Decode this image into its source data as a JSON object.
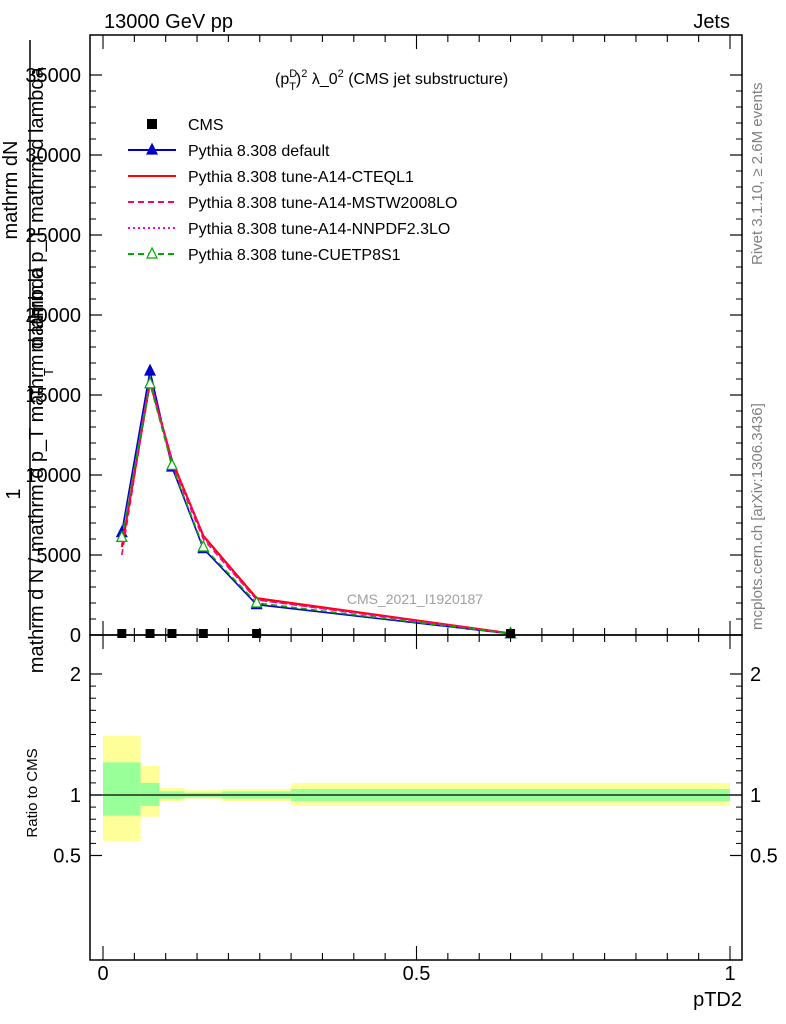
{
  "header": {
    "left": "13000 GeV pp",
    "right": "Jets"
  },
  "side": {
    "rivet": "Rivet 3.1.10, ≥ 2.6M events",
    "mcplots": "mcplots.cern.ch [arXiv:1306.3436]"
  },
  "watermark": "CMS_2021_I1920187",
  "chart_data": [
    {
      "type": "line",
      "title": "(p_T^D)^2 λ_0^2 (CMS jet substructure)",
      "title_parts": {
        "p": "(p",
        "sup_d": "D",
        "sub_t": "T",
        "close": ")",
        "sup_2": "2",
        "mid": " λ_0",
        "sup_2b": "2",
        "rest": " (CMS jet substructure)"
      },
      "ylabel_frac_num": "1",
      "ylabel_top": "mathrm dN",
      "ylabel_top2": "mathrm d p_T mathrm d lambda",
      "ylabel_bottom": "mathrm d N / mathrm d p_T mathrm d lambda",
      "ylabel_sub": "T",
      "xlabel": "pTD2",
      "xlim": [
        0,
        1
      ],
      "ylim": [
        0,
        35000
      ],
      "y_ticks": [
        0,
        5000,
        10000,
        15000,
        20000,
        25000,
        30000,
        35000
      ],
      "y_tick_labels": [
        "0",
        "5000",
        "10000",
        "15000",
        "20000",
        "25000",
        "30000",
        "35000"
      ],
      "x_ticks": [
        0,
        0.5,
        1
      ],
      "x_tick_labels": [
        "0",
        "0.5",
        "1"
      ],
      "legend_position": "top-left",
      "data_points": {
        "name": "CMS",
        "x": [
          0.03,
          0.075,
          0.11,
          0.16,
          0.245,
          0.65
        ],
        "y": [
          0,
          0,
          0,
          0,
          0,
          0
        ]
      },
      "series": [
        {
          "name": "Pythia 8.308 default",
          "color": "#0000cc",
          "style": "solid",
          "marker": "triangle-filled",
          "x": [
            0.03,
            0.075,
            0.11,
            0.16,
            0.245,
            0.65
          ],
          "y": [
            6400,
            16500,
            10500,
            5400,
            1900,
            80
          ]
        },
        {
          "name": "Pythia 8.308 tune-A14-CTEQL1",
          "color": "#ff0000",
          "style": "solid",
          "marker": "none",
          "x": [
            0.03,
            0.075,
            0.11,
            0.16,
            0.245,
            0.65
          ],
          "y": [
            5500,
            15800,
            10900,
            6200,
            2300,
            100
          ]
        },
        {
          "name": "Pythia 8.308 tune-A14-MSTW2008LO",
          "color": "#ff0066",
          "style": "dashed",
          "marker": "none",
          "x": [
            0.03,
            0.075,
            0.11,
            0.16,
            0.245,
            0.65
          ],
          "y": [
            5000,
            15900,
            10700,
            6000,
            2200,
            90
          ]
        },
        {
          "name": "Pythia 8.308 tune-A14-NNPDF2.3LO",
          "color": "#ff00cc",
          "style": "dotted",
          "marker": "none",
          "x": [
            0.03,
            0.075,
            0.11,
            0.16,
            0.245,
            0.65
          ],
          "y": [
            5800,
            15900,
            11000,
            6100,
            2200,
            95
          ]
        },
        {
          "name": "Pythia 8.308 tune-CUETP8S1",
          "color": "#00aa00",
          "style": "dashed",
          "marker": "triangle-open",
          "x": [
            0.03,
            0.075,
            0.11,
            0.16,
            0.245,
            0.65
          ],
          "y": [
            6100,
            15700,
            10600,
            5500,
            2000,
            85
          ]
        }
      ]
    },
    {
      "type": "ratio",
      "ylabel": "Ratio to CMS",
      "xlim": [
        0,
        1
      ],
      "ylim": [
        0.38,
        2.3
      ],
      "y_ticks": [
        0.5,
        1,
        2
      ],
      "y_tick_labels": [
        "0.5",
        "1",
        "2"
      ],
      "x_ticks": [
        0,
        0.5,
        1
      ],
      "x_tick_labels": [
        "0",
        "0.5",
        "1"
      ],
      "bins": [
        {
          "x0": 0.0,
          "x1": 0.06,
          "stat_lo": 0.83,
          "stat_hi": 1.27,
          "tot_lo": 0.62,
          "tot_hi": 1.49
        },
        {
          "x0": 0.06,
          "x1": 0.09,
          "stat_lo": 0.91,
          "stat_hi": 1.1,
          "tot_lo": 0.82,
          "tot_hi": 1.24
        },
        {
          "x0": 0.09,
          "x1": 0.13,
          "stat_lo": 0.97,
          "stat_hi": 1.03,
          "tot_lo": 0.95,
          "tot_hi": 1.06
        },
        {
          "x0": 0.13,
          "x1": 0.19,
          "stat_lo": 0.98,
          "stat_hi": 1.02,
          "tot_lo": 0.97,
          "tot_hi": 1.04
        },
        {
          "x0": 0.19,
          "x1": 0.3,
          "stat_lo": 0.97,
          "stat_hi": 1.03,
          "tot_lo": 0.95,
          "tot_hi": 1.05
        },
        {
          "x0": 0.3,
          "x1": 1.0,
          "stat_lo": 0.95,
          "stat_hi": 1.05,
          "tot_lo": 0.91,
          "tot_hi": 1.1
        }
      ]
    }
  ]
}
